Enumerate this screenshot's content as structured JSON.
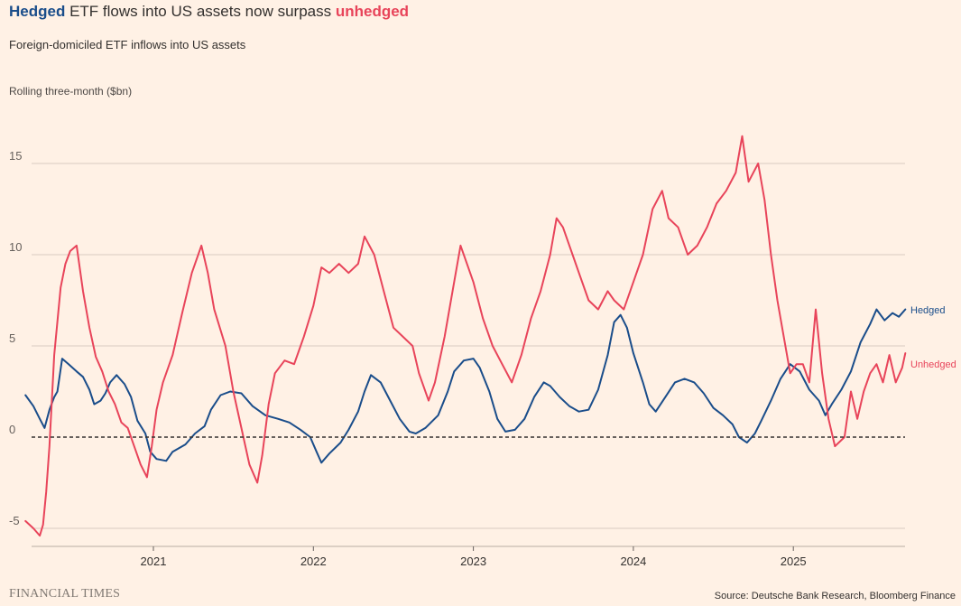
{
  "header": {
    "title_hedged": "Hedged",
    "title_middle": " ETF flows into US assets now surpass ",
    "title_unhedged": "unhedged",
    "subtitle": "Foreign-domiciled ETF inflows into US assets",
    "unit_label": "Rolling three-month ($bn)"
  },
  "footer": {
    "brand": "FINANCIAL TIMES",
    "source": "Source: Deutsche Bank Research, Bloomberg Finance"
  },
  "colors": {
    "hedged": "#1A4D8A",
    "unhedged": "#E8445A",
    "grid": "#D9CCC1",
    "zero_line": "#33302E",
    "background": "#FFF1E5"
  },
  "chart_data": {
    "type": "line",
    "title": "Hedged ETF flows into US assets now surpass unhedged",
    "subtitle": "Foreign-domiciled ETF inflows into US assets",
    "ylabel": "Rolling three-month ($bn)",
    "ylim": [
      -5.5,
      17
    ],
    "yticks": [
      -5,
      0,
      5,
      10,
      15
    ],
    "ytick_labels": [
      "-5",
      "0",
      "5",
      "10",
      "15"
    ],
    "xlim": [
      2020.2,
      2025.7
    ],
    "xticks": [
      2021,
      2022,
      2023,
      2024,
      2025
    ],
    "xtick_labels": [
      "2021",
      "2022",
      "2023",
      "2024",
      "2025"
    ],
    "grid": true,
    "zero_line": "dashed",
    "legend": "direct labels at line ends",
    "series": [
      {
        "name": "Hedged",
        "color": "#1A4D8A",
        "points": [
          [
            2020.2,
            2.3
          ],
          [
            2020.25,
            1.7
          ],
          [
            2020.29,
            1.0
          ],
          [
            2020.32,
            0.5
          ],
          [
            2020.35,
            1.5
          ],
          [
            2020.38,
            2.2
          ],
          [
            2020.4,
            2.5
          ],
          [
            2020.43,
            4.3
          ],
          [
            2020.47,
            4.0
          ],
          [
            2020.52,
            3.6
          ],
          [
            2020.56,
            3.3
          ],
          [
            2020.6,
            2.6
          ],
          [
            2020.63,
            1.8
          ],
          [
            2020.67,
            2.0
          ],
          [
            2020.7,
            2.4
          ],
          [
            2020.73,
            3.0
          ],
          [
            2020.77,
            3.4
          ],
          [
            2020.82,
            2.9
          ],
          [
            2020.86,
            2.2
          ],
          [
            2020.9,
            0.9
          ],
          [
            2020.95,
            0.2
          ],
          [
            2020.98,
            -0.8
          ],
          [
            2021.02,
            -1.2
          ],
          [
            2021.08,
            -1.3
          ],
          [
            2021.12,
            -0.8
          ],
          [
            2021.2,
            -0.4
          ],
          [
            2021.26,
            0.2
          ],
          [
            2021.32,
            0.6
          ],
          [
            2021.36,
            1.5
          ],
          [
            2021.42,
            2.3
          ],
          [
            2021.48,
            2.5
          ],
          [
            2021.55,
            2.4
          ],
          [
            2021.62,
            1.7
          ],
          [
            2021.7,
            1.2
          ],
          [
            2021.78,
            1.0
          ],
          [
            2021.85,
            0.8
          ],
          [
            2021.92,
            0.4
          ],
          [
            2021.98,
            0.0
          ],
          [
            2022.02,
            -0.8
          ],
          [
            2022.05,
            -1.4
          ],
          [
            2022.1,
            -0.9
          ],
          [
            2022.17,
            -0.3
          ],
          [
            2022.22,
            0.4
          ],
          [
            2022.28,
            1.4
          ],
          [
            2022.32,
            2.5
          ],
          [
            2022.36,
            3.4
          ],
          [
            2022.42,
            3.0
          ],
          [
            2022.48,
            2.0
          ],
          [
            2022.54,
            1.0
          ],
          [
            2022.6,
            0.3
          ],
          [
            2022.64,
            0.2
          ],
          [
            2022.7,
            0.5
          ],
          [
            2022.78,
            1.2
          ],
          [
            2022.84,
            2.5
          ],
          [
            2022.88,
            3.6
          ],
          [
            2022.94,
            4.2
          ],
          [
            2023.0,
            4.3
          ],
          [
            2023.04,
            3.8
          ],
          [
            2023.1,
            2.5
          ],
          [
            2023.15,
            1.0
          ],
          [
            2023.2,
            0.3
          ],
          [
            2023.26,
            0.4
          ],
          [
            2023.32,
            1.0
          ],
          [
            2023.38,
            2.2
          ],
          [
            2023.44,
            3.0
          ],
          [
            2023.48,
            2.8
          ],
          [
            2023.54,
            2.2
          ],
          [
            2023.6,
            1.7
          ],
          [
            2023.66,
            1.4
          ],
          [
            2023.72,
            1.5
          ],
          [
            2023.78,
            2.6
          ],
          [
            2023.84,
            4.5
          ],
          [
            2023.88,
            6.3
          ],
          [
            2023.92,
            6.7
          ],
          [
            2023.96,
            6.0
          ],
          [
            2024.0,
            4.6
          ],
          [
            2024.06,
            3.0
          ],
          [
            2024.1,
            1.8
          ],
          [
            2024.14,
            1.4
          ],
          [
            2024.2,
            2.2
          ],
          [
            2024.26,
            3.0
          ],
          [
            2024.32,
            3.2
          ],
          [
            2024.38,
            3.0
          ],
          [
            2024.44,
            2.4
          ],
          [
            2024.5,
            1.6
          ],
          [
            2024.56,
            1.2
          ],
          [
            2024.62,
            0.7
          ],
          [
            2024.66,
            0.0
          ],
          [
            2024.71,
            -0.3
          ],
          [
            2024.76,
            0.2
          ],
          [
            2024.8,
            0.9
          ],
          [
            2024.86,
            2.0
          ],
          [
            2024.92,
            3.2
          ],
          [
            2024.98,
            4.0
          ],
          [
            2025.04,
            3.6
          ],
          [
            2025.1,
            2.6
          ],
          [
            2025.16,
            2.0
          ],
          [
            2025.2,
            1.2
          ],
          [
            2025.24,
            1.8
          ],
          [
            2025.3,
            2.6
          ],
          [
            2025.36,
            3.6
          ],
          [
            2025.42,
            5.2
          ],
          [
            2025.48,
            6.2
          ],
          [
            2025.52,
            7.0
          ],
          [
            2025.57,
            6.4
          ],
          [
            2025.62,
            6.8
          ],
          [
            2025.66,
            6.6
          ],
          [
            2025.7,
            7.0
          ]
        ]
      },
      {
        "name": "Unhedged",
        "color": "#E8445A",
        "points": [
          [
            2020.2,
            -4.6
          ],
          [
            2020.25,
            -5.0
          ],
          [
            2020.29,
            -5.4
          ],
          [
            2020.31,
            -4.8
          ],
          [
            2020.33,
            -3.0
          ],
          [
            2020.35,
            -0.5
          ],
          [
            2020.38,
            4.5
          ],
          [
            2020.42,
            8.2
          ],
          [
            2020.45,
            9.5
          ],
          [
            2020.48,
            10.2
          ],
          [
            2020.52,
            10.5
          ],
          [
            2020.56,
            8.0
          ],
          [
            2020.6,
            6.0
          ],
          [
            2020.64,
            4.4
          ],
          [
            2020.68,
            3.6
          ],
          [
            2020.72,
            2.5
          ],
          [
            2020.76,
            1.8
          ],
          [
            2020.8,
            0.8
          ],
          [
            2020.84,
            0.5
          ],
          [
            2020.88,
            -0.5
          ],
          [
            2020.92,
            -1.5
          ],
          [
            2020.96,
            -2.2
          ],
          [
            2020.99,
            -0.5
          ],
          [
            2021.02,
            1.5
          ],
          [
            2021.06,
            3.0
          ],
          [
            2021.12,
            4.5
          ],
          [
            2021.18,
            6.8
          ],
          [
            2021.24,
            9.0
          ],
          [
            2021.3,
            10.5
          ],
          [
            2021.34,
            9.0
          ],
          [
            2021.38,
            7.0
          ],
          [
            2021.45,
            5.0
          ],
          [
            2021.5,
            2.5
          ],
          [
            2021.55,
            0.5
          ],
          [
            2021.6,
            -1.5
          ],
          [
            2021.65,
            -2.5
          ],
          [
            2021.68,
            -1.0
          ],
          [
            2021.72,
            1.8
          ],
          [
            2021.76,
            3.5
          ],
          [
            2021.82,
            4.2
          ],
          [
            2021.88,
            4.0
          ],
          [
            2021.94,
            5.5
          ],
          [
            2022.0,
            7.2
          ],
          [
            2022.05,
            9.3
          ],
          [
            2022.1,
            9.0
          ],
          [
            2022.16,
            9.5
          ],
          [
            2022.22,
            9.0
          ],
          [
            2022.28,
            9.5
          ],
          [
            2022.32,
            11.0
          ],
          [
            2022.38,
            10.0
          ],
          [
            2022.44,
            8.0
          ],
          [
            2022.5,
            6.0
          ],
          [
            2022.56,
            5.5
          ],
          [
            2022.62,
            5.0
          ],
          [
            2022.66,
            3.5
          ],
          [
            2022.72,
            2.0
          ],
          [
            2022.76,
            3.0
          ],
          [
            2022.82,
            5.5
          ],
          [
            2022.88,
            8.5
          ],
          [
            2022.92,
            10.5
          ],
          [
            2022.96,
            9.5
          ],
          [
            2023.0,
            8.5
          ],
          [
            2023.06,
            6.5
          ],
          [
            2023.12,
            5.0
          ],
          [
            2023.18,
            4.0
          ],
          [
            2023.24,
            3.0
          ],
          [
            2023.3,
            4.5
          ],
          [
            2023.36,
            6.5
          ],
          [
            2023.42,
            8.0
          ],
          [
            2023.48,
            10.0
          ],
          [
            2023.52,
            12.0
          ],
          [
            2023.56,
            11.5
          ],
          [
            2023.6,
            10.5
          ],
          [
            2023.66,
            9.0
          ],
          [
            2023.72,
            7.5
          ],
          [
            2023.78,
            7.0
          ],
          [
            2023.84,
            8.0
          ],
          [
            2023.88,
            7.5
          ],
          [
            2023.94,
            7.0
          ],
          [
            2024.0,
            8.5
          ],
          [
            2024.06,
            10.0
          ],
          [
            2024.12,
            12.5
          ],
          [
            2024.18,
            13.5
          ],
          [
            2024.22,
            12.0
          ],
          [
            2024.28,
            11.5
          ],
          [
            2024.34,
            10.0
          ],
          [
            2024.4,
            10.5
          ],
          [
            2024.46,
            11.5
          ],
          [
            2024.52,
            12.8
          ],
          [
            2024.58,
            13.5
          ],
          [
            2024.64,
            14.5
          ],
          [
            2024.68,
            16.5
          ],
          [
            2024.72,
            14.0
          ],
          [
            2024.78,
            15.0
          ],
          [
            2024.82,
            13.0
          ],
          [
            2024.86,
            10.0
          ],
          [
            2024.9,
            7.5
          ],
          [
            2024.94,
            5.5
          ],
          [
            2024.98,
            3.5
          ],
          [
            2025.02,
            4.0
          ],
          [
            2025.06,
            4.0
          ],
          [
            2025.1,
            3.0
          ],
          [
            2025.14,
            7.0
          ],
          [
            2025.18,
            3.5
          ],
          [
            2025.22,
            1.0
          ],
          [
            2025.26,
            -0.5
          ],
          [
            2025.32,
            0.0
          ],
          [
            2025.36,
            2.5
          ],
          [
            2025.4,
            1.0
          ],
          [
            2025.44,
            2.5
          ],
          [
            2025.48,
            3.5
          ],
          [
            2025.52,
            4.0
          ],
          [
            2025.56,
            3.0
          ],
          [
            2025.6,
            4.5
          ],
          [
            2025.64,
            3.0
          ],
          [
            2025.68,
            3.8
          ],
          [
            2025.7,
            4.6
          ]
        ]
      }
    ]
  }
}
